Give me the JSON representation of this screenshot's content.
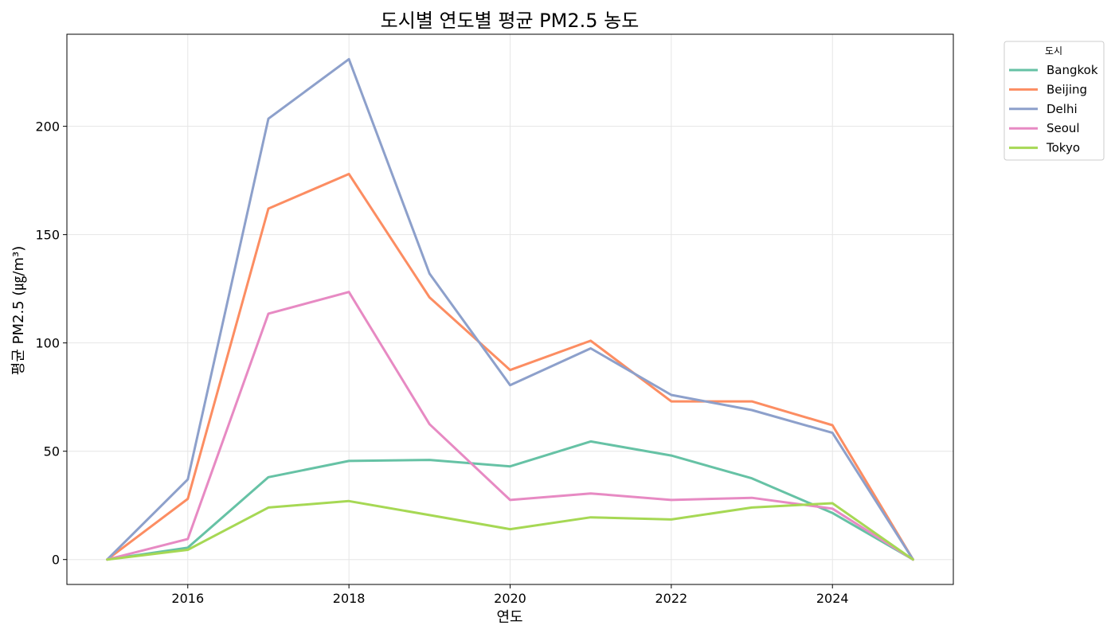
{
  "chart_data": {
    "type": "line",
    "title": "도시별 연도별 평균 PM2.5 농도",
    "xlabel": "연도",
    "ylabel": "평균 PM2.5 (㎍/m³)",
    "x": [
      2015,
      2016,
      2017,
      2018,
      2019,
      2020,
      2021,
      2022,
      2023,
      2024,
      2025
    ],
    "xlim": [
      2014.5,
      2025.5
    ],
    "ylim": [
      -11.5,
      242.5
    ],
    "xticks": [
      2016,
      2018,
      2020,
      2022,
      2024
    ],
    "yticks": [
      0,
      50,
      100,
      150,
      200
    ],
    "grid": true,
    "legend": {
      "title": "도시",
      "position": "outside-top-right"
    },
    "series": [
      {
        "name": "Bangkok",
        "color": "#66c2a5",
        "values": [
          0,
          5.5,
          38,
          45.5,
          46,
          43,
          54.5,
          48,
          37.5,
          21.5,
          0
        ]
      },
      {
        "name": "Beijing",
        "color": "#fc8d62",
        "values": [
          0,
          28,
          162,
          178,
          121,
          87.5,
          101,
          73,
          73,
          62,
          0
        ]
      },
      {
        "name": "Delhi",
        "color": "#8da0cb",
        "values": [
          0,
          37,
          203.5,
          231,
          132,
          80.5,
          97.5,
          76,
          69,
          58.5,
          0
        ]
      },
      {
        "name": "Seoul",
        "color": "#e78ac3",
        "values": [
          0,
          9.5,
          113.5,
          123.5,
          62.5,
          27.5,
          30.5,
          27.5,
          28.5,
          23.5,
          0
        ]
      },
      {
        "name": "Tokyo",
        "color": "#a6d854",
        "values": [
          0,
          4.5,
          24,
          27,
          20.5,
          14,
          19.5,
          18.5,
          24,
          26,
          0
        ]
      }
    ]
  }
}
